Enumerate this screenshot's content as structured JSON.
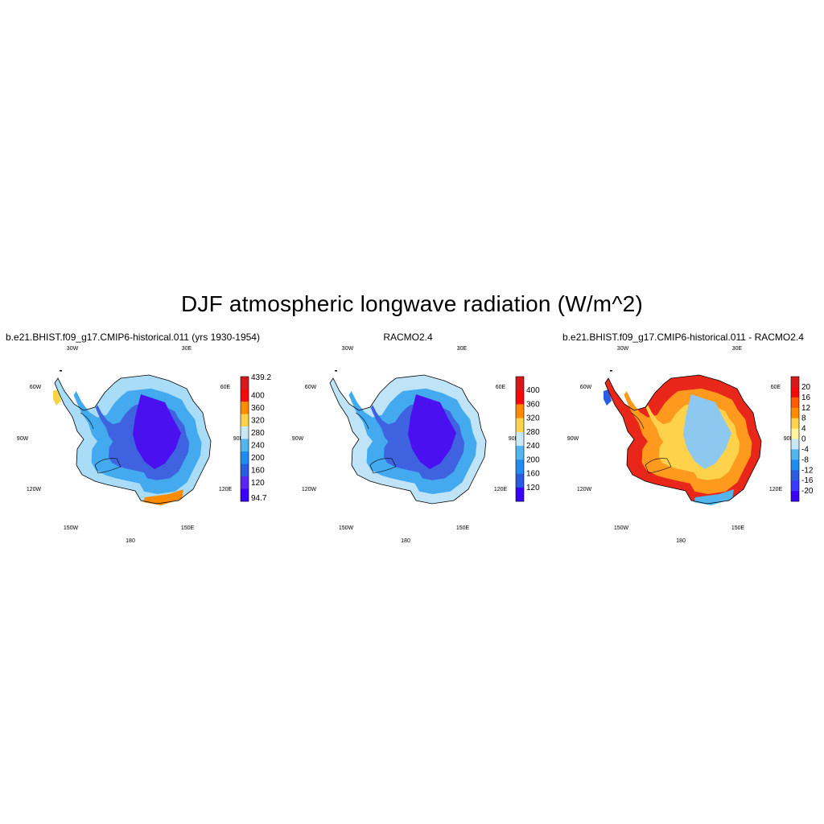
{
  "title": "DJF atmospheric longwave radiation (W/m^2)",
  "meridian_labels": {
    "w30": "30W",
    "e30": "30E",
    "w60": "60W",
    "e60": "60E",
    "w90": "90W",
    "e90": "90E",
    "w120": "120W",
    "e120": "120E",
    "w150": "150W",
    "e150": "150E",
    "s180": "180"
  },
  "panels": [
    {
      "title": "b.e21.BHIST.f09_g17.CMIP6-historical.011 (yrs 1930-1954)",
      "colorbar": {
        "labels": [
          "439.2",
          "400",
          "360",
          "320",
          "280",
          "240",
          "200",
          "160",
          "120",
          "94.7"
        ],
        "colors": [
          "#d7191c",
          "#f50a0a",
          "#ff8c00",
          "#ffd24c",
          "#c9e8f5",
          "#52b5f0",
          "#1e8cf0",
          "#2a5ce0",
          "#5a28f5",
          "#3a00ff"
        ]
      },
      "colors": {
        "outer": "#a9dcf7",
        "mid": "#43aaf0",
        "inner": "#3f63e0",
        "core": "#4a10f0"
      },
      "highlights": [
        "#f7d34a",
        "#ff8c00"
      ]
    },
    {
      "title": "RACMO2.4",
      "colorbar": {
        "labels": [
          "400",
          "360",
          "320",
          "280",
          "240",
          "200",
          "160",
          "120"
        ],
        "colors": [
          "#d7191c",
          "#f50a0a",
          "#ff8c00",
          "#ffd24c",
          "#c9e8f5",
          "#52b5f0",
          "#1e8cf0",
          "#2a5ce0",
          "#3a00ff"
        ]
      },
      "colors": {
        "outer": "#bfe4f8",
        "mid": "#43aaf0",
        "inner": "#3f63e0",
        "core": "#4a10f0"
      },
      "highlights": []
    },
    {
      "title": "b.e21.BHIST.f09_g17.CMIP6-historical.011 - RACMO2.4",
      "colorbar": {
        "labels": [
          "20",
          "16",
          "12",
          "8",
          "4",
          "0",
          "-4",
          "-8",
          "-12",
          "-16",
          "-20"
        ],
        "colors": [
          "#d7191c",
          "#f50a0a",
          "#ff5a00",
          "#ff8c00",
          "#ffd24c",
          "#fff59a",
          "#c9e8f5",
          "#52b5f0",
          "#1e8cf0",
          "#2a5ce0",
          "#3a3aff",
          "#3a00ff"
        ]
      },
      "colors": {
        "outer": "#e8261a",
        "mid": "#ff9a1e",
        "inner": "#ffd24c",
        "core": "#8cc8f0"
      },
      "highlights": [
        "#2a5ce0",
        "#52b5f0"
      ]
    }
  ]
}
